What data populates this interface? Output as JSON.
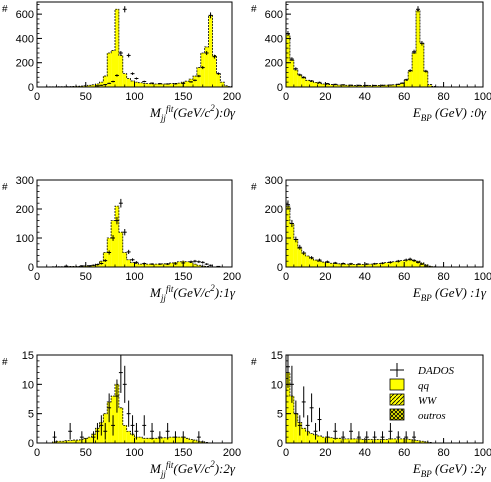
{
  "colors": {
    "qq_fill": "#ffff00",
    "edge": "#000000",
    "background": "#ffffff"
  },
  "legend": {
    "placement": "top-right of bottom-right panel",
    "items": [
      {
        "key": "dados",
        "label": "DADOS",
        "icon": "cross-marker-icon"
      },
      {
        "key": "qq",
        "label": "qq",
        "icon": "solid-yellow-box-icon"
      },
      {
        "key": "ww",
        "label": "WW",
        "icon": "hatched-box-icon"
      },
      {
        "key": "outros",
        "label": "outros",
        "icon": "crosshatched-box-icon"
      }
    ]
  },
  "chart_data": [
    {
      "type": "bar",
      "id": "p1",
      "ylabel": "#",
      "xlabel_main": "M",
      "xlabel_sub": "jj",
      "xlabel_sup": "fit",
      "xlabel_rest": "(GeV/c",
      "xlabel_sup2": "2",
      "xlabel_tail": "):0γ",
      "xlim": [
        0,
        200
      ],
      "ylim": [
        0,
        700
      ],
      "xticks": [
        0,
        50,
        100,
        150,
        200
      ],
      "yticks": [
        0,
        200,
        400,
        600
      ],
      "bin_width": 4,
      "bin_start": 0,
      "mc": [
        0,
        0,
        2,
        2,
        2,
        3,
        3,
        3,
        4,
        5,
        6,
        8,
        10,
        14,
        18,
        25,
        40,
        90,
        280,
        300,
        640,
        260,
        110,
        70,
        50,
        40,
        35,
        30,
        28,
        26,
        25,
        25,
        25,
        26,
        28,
        30,
        32,
        40,
        48,
        65,
        90,
        160,
        280,
        330,
        590,
        260,
        110,
        40,
        10,
        4
      ],
      "data": [
        [
          62,
          10
        ],
        [
          66,
          14
        ],
        [
          70,
          20
        ],
        [
          74,
          30
        ],
        [
          78,
          45
        ],
        [
          82,
          95
        ],
        [
          86,
          280
        ],
        [
          90,
          640
        ],
        [
          94,
          260
        ],
        [
          98,
          110
        ],
        [
          102,
          70
        ],
        [
          110,
          45
        ],
        [
          118,
          32
        ],
        [
          126,
          28
        ],
        [
          134,
          25
        ],
        [
          142,
          26
        ],
        [
          150,
          30
        ],
        [
          158,
          42
        ],
        [
          162,
          55
        ],
        [
          166,
          90
        ],
        [
          170,
          160
        ],
        [
          174,
          280
        ],
        [
          178,
          590
        ],
        [
          182,
          250
        ],
        [
          186,
          110
        ]
      ]
    },
    {
      "type": "bar",
      "id": "p2",
      "ylabel": "#",
      "xlabel_main": "E",
      "xlabel_sub": "BP",
      "xlabel_rest": " (GeV) :0γ",
      "xlim": [
        0,
        100
      ],
      "ylim": [
        0,
        700
      ],
      "xticks": [
        0,
        20,
        40,
        60,
        80,
        100
      ],
      "yticks": [
        0,
        200,
        400,
        600
      ],
      "bin_width": 2,
      "bin_start": 0,
      "mc": [
        430,
        220,
        140,
        100,
        75,
        55,
        45,
        38,
        30,
        25,
        22,
        20,
        18,
        16,
        15,
        14,
        13,
        12,
        12,
        12,
        12,
        12,
        13,
        13,
        14,
        15,
        16,
        18,
        22,
        30,
        55,
        130,
        280,
        630,
        360,
        130,
        20,
        5,
        2,
        2,
        0,
        0,
        0,
        0,
        0,
        0,
        0,
        0,
        0,
        0
      ],
      "data": [
        [
          1,
          440
        ],
        [
          3,
          230
        ],
        [
          5,
          150
        ],
        [
          7,
          100
        ],
        [
          9,
          80
        ],
        [
          13,
          50
        ],
        [
          17,
          38
        ],
        [
          21,
          28
        ],
        [
          25,
          22
        ],
        [
          29,
          18
        ],
        [
          33,
          15
        ],
        [
          37,
          14
        ],
        [
          41,
          13
        ],
        [
          45,
          13
        ],
        [
          49,
          14
        ],
        [
          53,
          16
        ],
        [
          57,
          22
        ],
        [
          59,
          32
        ],
        [
          61,
          60
        ],
        [
          63,
          135
        ],
        [
          65,
          290
        ],
        [
          67,
          640
        ],
        [
          69,
          360
        ],
        [
          71,
          130
        ]
      ]
    },
    {
      "type": "bar",
      "id": "p3",
      "ylabel": "#",
      "xlabel_main": "M",
      "xlabel_sub": "jj",
      "xlabel_sup": "fit",
      "xlabel_rest": "(GeV/c",
      "xlabel_sup2": "2",
      "xlabel_tail": "):1γ",
      "xlim": [
        0,
        200
      ],
      "ylim": [
        0,
        300
      ],
      "xticks": [
        0,
        50,
        100,
        150,
        200
      ],
      "yticks": [
        0,
        100,
        200,
        300
      ],
      "bin_width": 4,
      "bin_start": 0,
      "mc": [
        0,
        0,
        0,
        0,
        1,
        1,
        1,
        1,
        2,
        2,
        2,
        3,
        4,
        5,
        6,
        10,
        20,
        50,
        100,
        160,
        210,
        120,
        50,
        25,
        15,
        12,
        10,
        10,
        10,
        10,
        10,
        10,
        11,
        12,
        14,
        16,
        18,
        20,
        18,
        15,
        10,
        6,
        3,
        2,
        1,
        0,
        0,
        0,
        0,
        0
      ],
      "data": [
        [
          30,
          3
        ],
        [
          46,
          4
        ],
        [
          54,
          4
        ],
        [
          58,
          6
        ],
        [
          62,
          8
        ],
        [
          66,
          12
        ],
        [
          70,
          22
        ],
        [
          74,
          50
        ],
        [
          78,
          100
        ],
        [
          82,
          160
        ],
        [
          86,
          220
        ],
        [
          90,
          120
        ],
        [
          94,
          52
        ],
        [
          98,
          25
        ],
        [
          102,
          16
        ],
        [
          110,
          12
        ],
        [
          118,
          10
        ],
        [
          126,
          10
        ],
        [
          134,
          10
        ],
        [
          142,
          11
        ],
        [
          150,
          14
        ],
        [
          158,
          18
        ],
        [
          162,
          20
        ],
        [
          166,
          18
        ],
        [
          170,
          16
        ],
        [
          174,
          10
        ],
        [
          178,
          6
        ],
        [
          186,
          2
        ]
      ]
    },
    {
      "type": "bar",
      "id": "p4",
      "ylabel": "#",
      "xlabel_main": "E",
      "xlabel_sub": "BP",
      "xlabel_rest": " (GeV) :1γ",
      "xlim": [
        0,
        100
      ],
      "ylim": [
        0,
        300
      ],
      "xticks": [
        0,
        20,
        40,
        60,
        80,
        100
      ],
      "yticks": [
        0,
        100,
        200,
        300
      ],
      "bin_width": 2,
      "bin_start": 0,
      "mc": [
        210,
        150,
        95,
        65,
        48,
        38,
        30,
        24,
        20,
        17,
        15,
        13,
        12,
        11,
        10,
        10,
        9,
        9,
        9,
        9,
        10,
        10,
        11,
        12,
        13,
        15,
        17,
        18,
        20,
        22,
        24,
        25,
        23,
        20,
        14,
        8,
        3,
        1,
        0,
        0,
        0,
        0,
        0,
        0,
        0,
        0,
        0,
        0,
        0,
        0
      ],
      "data": [
        [
          1,
          215
        ],
        [
          3,
          150
        ],
        [
          5,
          95
        ],
        [
          7,
          68
        ],
        [
          9,
          48
        ],
        [
          13,
          32
        ],
        [
          17,
          24
        ],
        [
          21,
          18
        ],
        [
          25,
          14
        ],
        [
          29,
          12
        ],
        [
          33,
          11
        ],
        [
          37,
          10
        ],
        [
          41,
          10
        ],
        [
          45,
          11
        ],
        [
          49,
          13
        ],
        [
          53,
          16
        ],
        [
          57,
          20
        ],
        [
          61,
          24
        ],
        [
          63,
          27
        ],
        [
          65,
          22
        ],
        [
          67,
          16
        ],
        [
          69,
          10
        ],
        [
          71,
          4
        ]
      ]
    },
    {
      "type": "bar",
      "id": "p5",
      "ylabel": "#",
      "xlabel_main": "M",
      "xlabel_sub": "jj",
      "xlabel_sup": "fit",
      "xlabel_rest": "(GeV/c",
      "xlabel_sup2": "2",
      "xlabel_tail": "):2γ",
      "xlim": [
        0,
        200
      ],
      "ylim": [
        0,
        15
      ],
      "xticks": [
        0,
        50,
        100,
        150,
        200
      ],
      "yticks": [
        0,
        5,
        10,
        15
      ],
      "bin_width": 4,
      "bin_start": 0,
      "mc": [
        0,
        0,
        0,
        0,
        0.2,
        0.3,
        0.3,
        0.4,
        0.4,
        0.5,
        0.5,
        0.6,
        0.8,
        1.0,
        1.5,
        2.5,
        3.5,
        5,
        7,
        8,
        10,
        6,
        3,
        2,
        1.5,
        1,
        1,
        0.8,
        0.8,
        0.8,
        0.8,
        0.8,
        0.9,
        0.9,
        1,
        1,
        1,
        1,
        0.8,
        0.6,
        0.5,
        0.3,
        0.2,
        0.1,
        0,
        0,
        0,
        0,
        0,
        0
      ],
      "data": [
        [
          18,
          1
        ],
        [
          34,
          2
        ],
        [
          46,
          1
        ],
        [
          58,
          1
        ],
        [
          62,
          2
        ],
        [
          66,
          3
        ],
        [
          70,
          2
        ],
        [
          74,
          6
        ],
        [
          78,
          3
        ],
        [
          82,
          8
        ],
        [
          86,
          12
        ],
        [
          90,
          10
        ],
        [
          94,
          5
        ],
        [
          98,
          3
        ],
        [
          102,
          2
        ],
        [
          110,
          3
        ],
        [
          118,
          2
        ],
        [
          126,
          1
        ],
        [
          134,
          2
        ],
        [
          142,
          1
        ],
        [
          150,
          1
        ],
        [
          166,
          1
        ]
      ]
    },
    {
      "type": "bar",
      "id": "p6",
      "ylabel": "#",
      "xlabel_main": "E",
      "xlabel_sub": "BP",
      "xlabel_rest": " (GeV) :2γ",
      "xlim": [
        0,
        100
      ],
      "ylim": [
        0,
        15
      ],
      "xticks": [
        0,
        20,
        40,
        60,
        80,
        100
      ],
      "yticks": [
        0,
        5,
        10,
        15
      ],
      "bin_width": 2,
      "bin_start": 0,
      "mc": [
        12,
        8,
        5,
        3.5,
        2.5,
        2,
        1.6,
        1.4,
        1.2,
        1,
        1,
        0.9,
        0.8,
        0.8,
        0.7,
        0.7,
        0.7,
        0.7,
        0.7,
        0.6,
        0.6,
        0.6,
        0.6,
        0.6,
        0.6,
        0.6,
        0.7,
        0.7,
        0.7,
        0.7,
        0.7,
        0.6,
        0.5,
        0.4,
        0.3,
        0.2,
        0.1,
        0,
        0,
        0,
        0,
        0,
        0,
        0,
        0,
        0,
        0,
        0,
        0,
        0
      ],
      "data": [
        [
          1,
          13
        ],
        [
          3,
          10
        ],
        [
          5,
          5
        ],
        [
          7,
          3
        ],
        [
          9,
          7
        ],
        [
          11,
          3
        ],
        [
          13,
          6
        ],
        [
          15,
          2
        ],
        [
          17,
          4
        ],
        [
          21,
          1
        ],
        [
          25,
          2
        ],
        [
          29,
          1
        ],
        [
          33,
          2
        ],
        [
          37,
          1
        ],
        [
          41,
          1
        ],
        [
          45,
          1
        ],
        [
          49,
          1
        ],
        [
          53,
          2
        ],
        [
          57,
          1
        ],
        [
          61,
          1
        ],
        [
          65,
          1
        ]
      ]
    }
  ]
}
